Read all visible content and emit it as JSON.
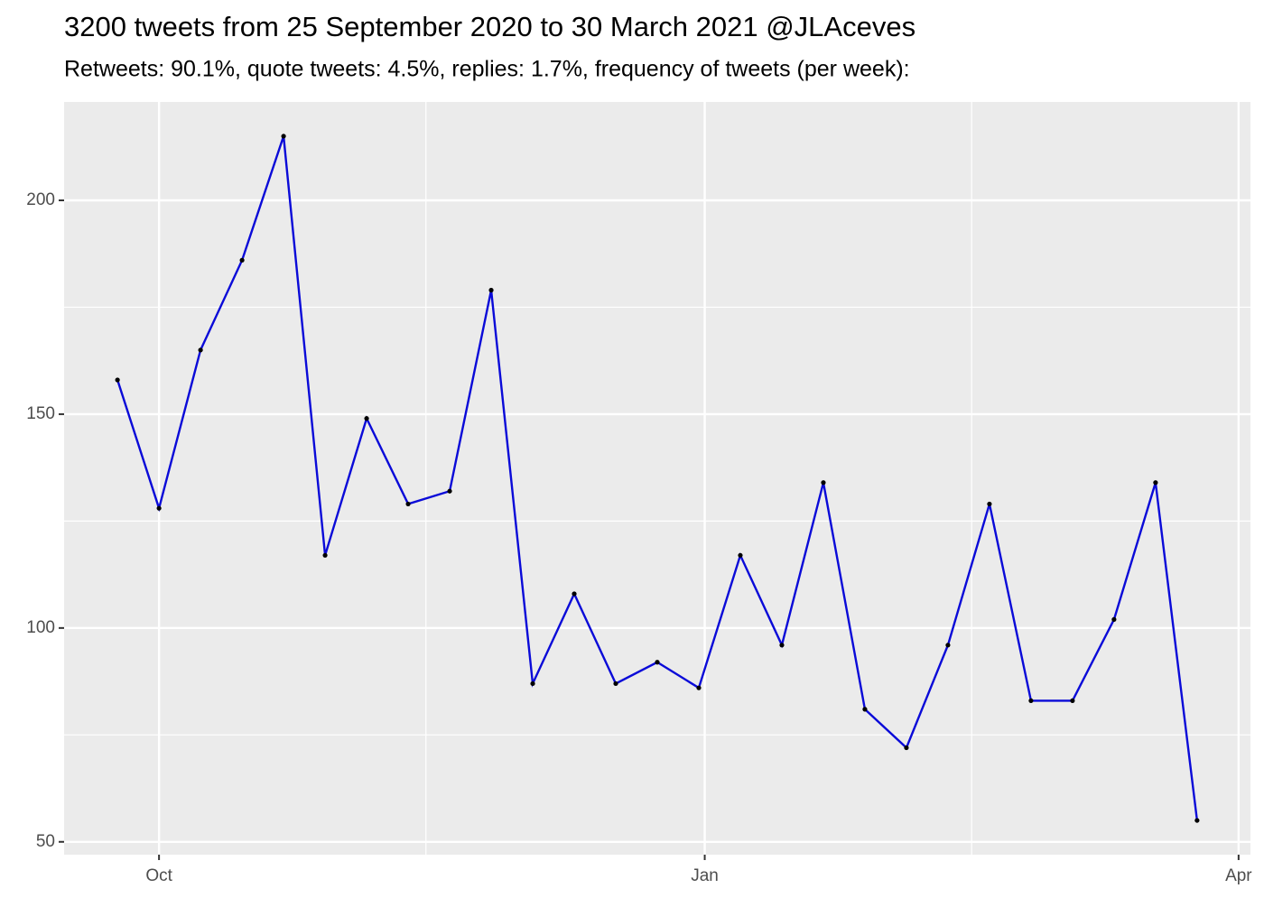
{
  "chart_data": {
    "type": "line",
    "title": "3200 tweets from 25 September 2020 to 30 March 2021 @JLAceves",
    "subtitle": "Retweets: 90.1%, quote tweets: 4.5%, replies: 1.7%, frequency of tweets (per week):",
    "x": [
      "2020-09-24",
      "2020-10-01",
      "2020-10-08",
      "2020-10-15",
      "2020-10-22",
      "2020-10-29",
      "2020-11-05",
      "2020-11-12",
      "2020-11-19",
      "2020-11-26",
      "2020-12-03",
      "2020-12-10",
      "2020-12-17",
      "2020-12-24",
      "2020-12-31",
      "2021-01-07",
      "2021-01-14",
      "2021-01-21",
      "2021-01-28",
      "2021-02-04",
      "2021-02-11",
      "2021-02-18",
      "2021-02-25",
      "2021-03-04",
      "2021-03-11",
      "2021-03-18",
      "2021-03-25"
    ],
    "series": [
      {
        "color": "#0a0ad8",
        "point_color": "#000000",
        "values": [
          158,
          128,
          165,
          186,
          215,
          117,
          149,
          129,
          132,
          179,
          87,
          108,
          87,
          92,
          86,
          117,
          96,
          134,
          81,
          72,
          96,
          129,
          83,
          83,
          102,
          134,
          55
        ]
      }
    ],
    "xlim": [
      "2020-09-15",
      "2021-04-03"
    ],
    "xticks": [
      {
        "value": "2020-10-01",
        "label": "Oct"
      },
      {
        "value": "2021-01-01",
        "label": "Jan"
      },
      {
        "value": "2021-04-01",
        "label": "Apr"
      }
    ],
    "x_minor_ticks": [
      "2020-11-15",
      "2021-02-15"
    ],
    "ylim": [
      47,
      223
    ],
    "yticks": [
      50,
      100,
      150,
      200
    ],
    "y_minor_ticks": [
      75,
      125,
      175
    ],
    "grid": true
  }
}
